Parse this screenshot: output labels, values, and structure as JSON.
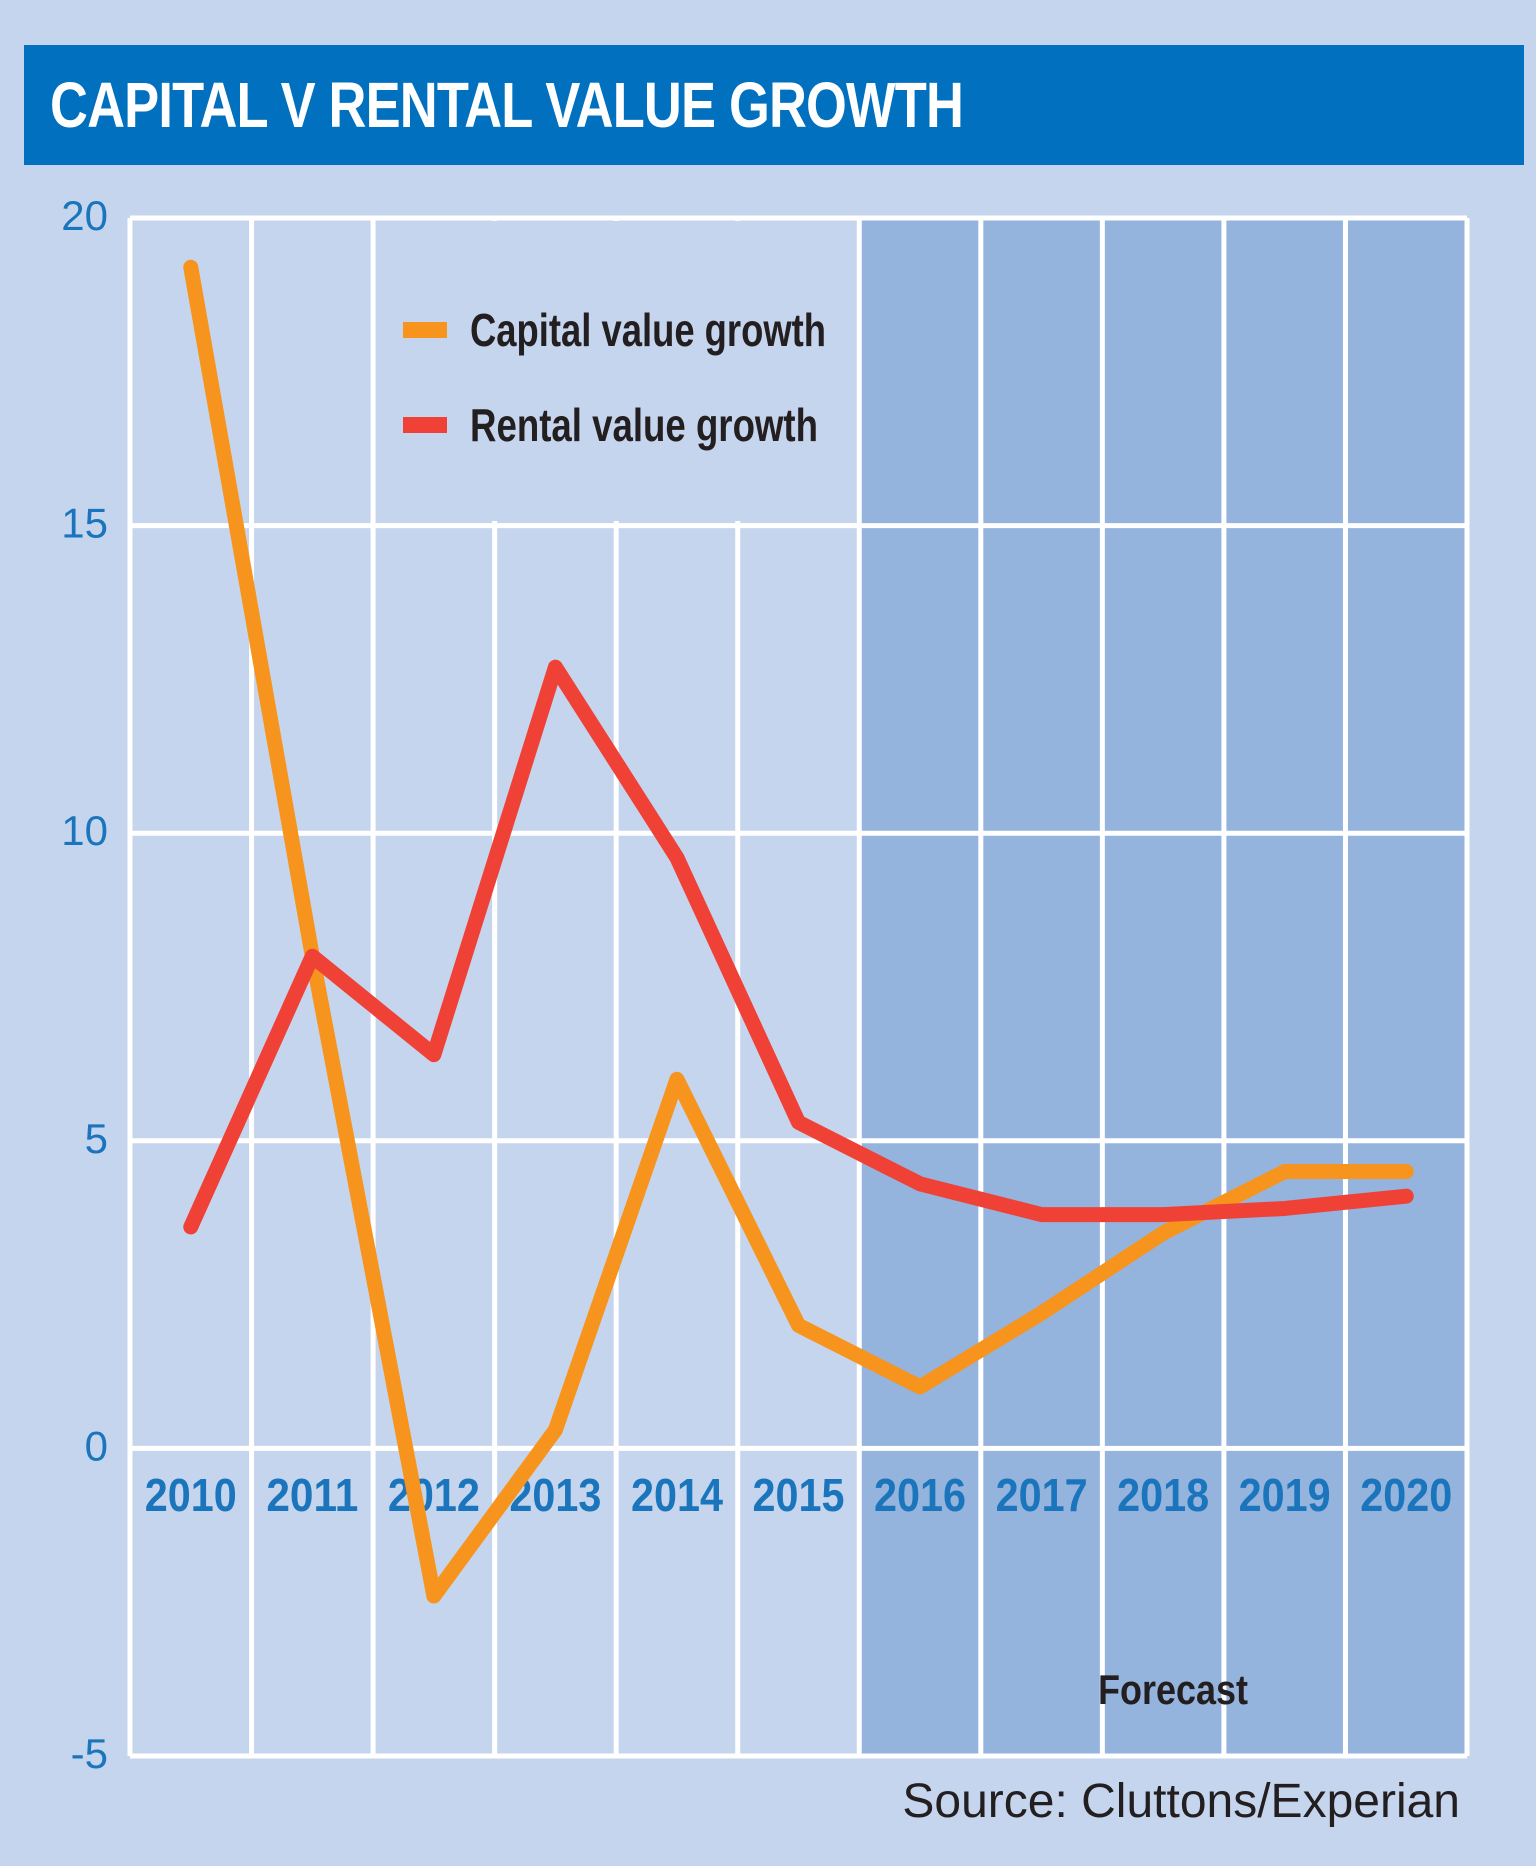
{
  "chart_data": {
    "type": "line",
    "title": "CAPITAL V RENTAL VALUE GROWTH",
    "categories": [
      "2010",
      "2011",
      "2012",
      "2013",
      "2014",
      "2015",
      "2016",
      "2017",
      "2018",
      "2019",
      "2020"
    ],
    "series": [
      {
        "name": "Capital value growth",
        "color": "#f7941d",
        "values": [
          19.2,
          8.0,
          -2.4,
          0.3,
          6.0,
          2.0,
          1.0,
          2.2,
          3.5,
          4.5,
          4.5
        ]
      },
      {
        "name": "Rental value growth",
        "color": "#ef4136",
        "values": [
          3.6,
          8.0,
          6.4,
          12.7,
          9.6,
          5.3,
          4.3,
          3.8,
          3.8,
          3.9,
          4.1
        ]
      }
    ],
    "ylim": [
      -5,
      20
    ],
    "yticks": [
      "20",
      "15",
      "10",
      "5",
      "0",
      "-5"
    ],
    "forecast_label": "Forecast",
    "forecast_start": "2016",
    "grid": true,
    "legend_position": "top-left",
    "source": "Source: Cluttons/Experian",
    "colors": {
      "background": "#c6d5ee",
      "forecast_shade": "#94b3dd",
      "title_bar": "#0070bf",
      "tick_labels": "#1b75bc"
    }
  }
}
